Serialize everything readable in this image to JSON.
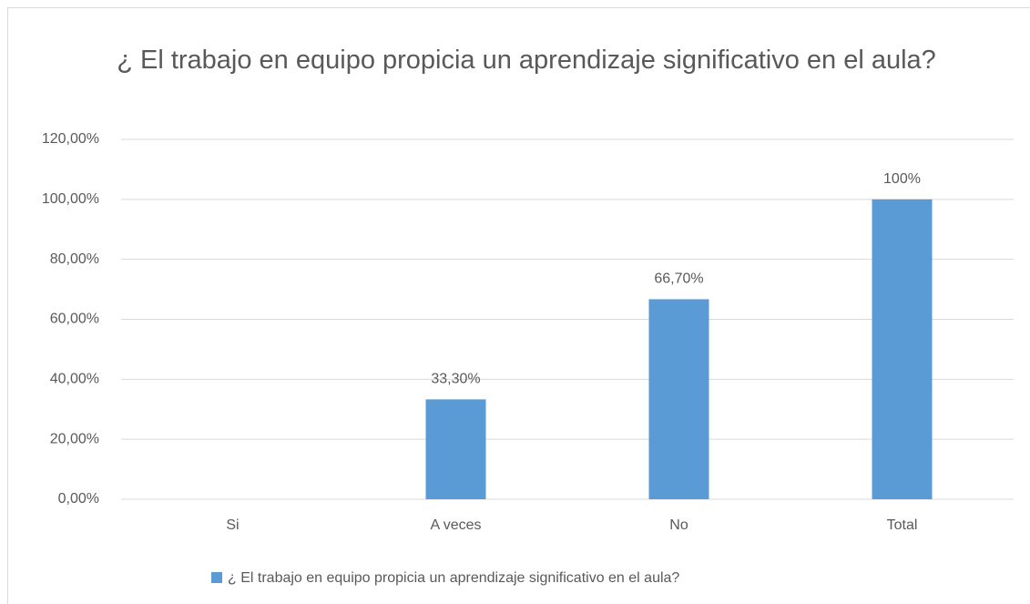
{
  "chart_data": {
    "type": "bar",
    "title": "¿ El trabajo en equipo propicia un aprendizaje significativo en el aula?",
    "categories": [
      "Si",
      "A veces",
      "No",
      "Total"
    ],
    "series": [
      {
        "name": "¿ El trabajo en equipo propicia un aprendizaje significativo en el aula?",
        "color": "#5b9bd5",
        "values": [
          0,
          33.3,
          66.7,
          100
        ],
        "value_labels": [
          null,
          "33,30%",
          "66,70%",
          "100%"
        ]
      }
    ],
    "ylim": [
      0,
      120
    ],
    "yticks": [
      {
        "value": 0,
        "label": "0,00%"
      },
      {
        "value": 20,
        "label": "20,00%"
      },
      {
        "value": 40,
        "label": "40,00%"
      },
      {
        "value": 60,
        "label": "60,00%"
      },
      {
        "value": 80,
        "label": "80,00%"
      },
      {
        "value": 100,
        "label": "100,00%"
      },
      {
        "value": 120,
        "label": "120,00%"
      }
    ],
    "grid": true,
    "legend": "bottom"
  }
}
